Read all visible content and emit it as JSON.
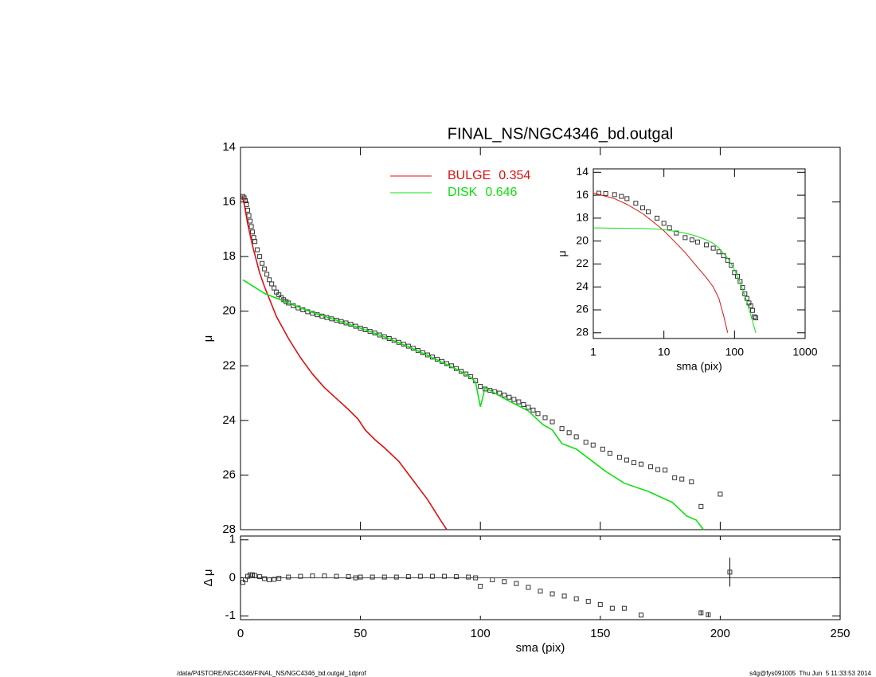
{
  "footer_left": "/data/P4STORE/NGC4346/FINAL_NS/NGC4346_bd.outgal_1dprof",
  "footer_right": "s4g@fys091005  Thu Jun  5 11:33:53 2014",
  "chart_data": [
    {
      "type": "line",
      "title": "FINAL_NS/NGC4346_bd.outgal",
      "ylabel": "μ",
      "xlim": [
        0,
        250
      ],
      "xticks": [
        0,
        50,
        100,
        150,
        200,
        250
      ],
      "ylim": [
        28,
        14
      ],
      "yticks": [
        14,
        16,
        18,
        20,
        22,
        24,
        26,
        28
      ],
      "series": [
        {
          "marker": "square",
          "color": "#333333",
          "x": [
            1,
            1.5,
            2,
            2.5,
            3,
            3.5,
            4,
            4.5,
            5,
            5.5,
            6,
            7,
            8,
            9,
            10,
            11,
            12,
            13,
            14,
            15,
            16,
            17,
            18,
            19,
            20,
            22,
            24,
            26,
            28,
            30,
            32,
            34,
            36,
            38,
            40,
            42,
            44,
            46,
            48,
            50,
            52,
            54,
            56,
            58,
            60,
            62,
            64,
            66,
            68,
            70,
            72,
            74,
            76,
            78,
            80,
            82,
            84,
            86,
            88,
            90,
            92,
            94,
            96,
            98,
            100,
            102,
            104,
            106,
            108,
            110,
            112,
            114,
            116,
            118,
            120,
            122,
            124,
            127,
            130,
            134,
            137,
            140,
            144,
            147,
            151,
            154,
            158,
            161,
            164,
            167,
            171,
            174,
            177,
            181,
            184,
            188,
            192,
            200
          ],
          "values": [
            15.8,
            15.85,
            15.95,
            16.1,
            16.3,
            16.5,
            16.7,
            16.9,
            17.1,
            17.3,
            17.45,
            17.75,
            18.0,
            18.25,
            18.45,
            18.65,
            18.85,
            19.0,
            19.15,
            19.3,
            19.4,
            19.5,
            19.58,
            19.65,
            19.7,
            19.8,
            19.88,
            19.95,
            20.02,
            20.08,
            20.13,
            20.18,
            20.23,
            20.28,
            20.33,
            20.38,
            20.43,
            20.48,
            20.55,
            20.62,
            20.68,
            20.74,
            20.8,
            20.87,
            20.94,
            21.0,
            21.07,
            21.14,
            21.21,
            21.28,
            21.36,
            21.44,
            21.52,
            21.6,
            21.68,
            21.76,
            21.84,
            21.92,
            22.0,
            22.1,
            22.2,
            22.3,
            22.4,
            22.55,
            22.75,
            22.85,
            22.9,
            22.95,
            23.0,
            23.07,
            23.15,
            23.23,
            23.32,
            23.42,
            23.52,
            23.62,
            23.75,
            23.9,
            24.05,
            24.3,
            24.45,
            24.6,
            24.8,
            24.9,
            25.05,
            25.2,
            25.35,
            25.45,
            25.55,
            25.6,
            25.7,
            25.8,
            25.82,
            26.1,
            26.15,
            26.25,
            27.15,
            26.7
          ]
        },
        {
          "name": "BULGE",
          "fraction": 0.354,
          "color": "#e01010",
          "x": [
            1,
            2,
            3,
            5,
            8,
            10,
            15,
            20,
            25,
            30,
            35,
            40,
            45,
            49,
            52,
            56,
            60,
            66,
            72,
            78,
            83,
            86
          ],
          "values": [
            15.8,
            16.3,
            16.8,
            17.6,
            18.6,
            19.1,
            20.2,
            21.0,
            21.7,
            22.3,
            22.8,
            23.2,
            23.6,
            23.95,
            24.35,
            24.7,
            25.0,
            25.5,
            26.2,
            26.9,
            27.6,
            28.0
          ]
        },
        {
          "name": "DISK",
          "fraction": 0.646,
          "color": "#10e010",
          "x": [
            1,
            10,
            20,
            30,
            40,
            50,
            60,
            70,
            80,
            90,
            96,
            98,
            100,
            102,
            110,
            120,
            126,
            130,
            134,
            140,
            146,
            152,
            160,
            170,
            180,
            186,
            190,
            193
          ],
          "values": [
            18.85,
            19.35,
            19.7,
            20.05,
            20.33,
            20.62,
            20.94,
            21.3,
            21.7,
            22.12,
            22.42,
            22.6,
            23.5,
            22.8,
            23.2,
            23.65,
            24.15,
            24.35,
            24.85,
            25.05,
            25.45,
            25.85,
            26.3,
            26.6,
            27.0,
            27.5,
            27.65,
            28.0
          ]
        }
      ]
    },
    {
      "type": "residual",
      "xlabel": "sma (pix)",
      "ylabel": "Δ μ",
      "xlim": [
        0,
        250
      ],
      "xticks": [
        0,
        50,
        100,
        150,
        200,
        250
      ],
      "ylim": [
        -1.1,
        1.1
      ],
      "yticks": [
        1,
        0,
        -1
      ],
      "hline": 0,
      "series": [
        {
          "marker": "square",
          "color": "#333333",
          "x": [
            1,
            2,
            3,
            4,
            5,
            6,
            8,
            10,
            12,
            14,
            16,
            20,
            25,
            30,
            35,
            40,
            45,
            48,
            50,
            55,
            60,
            65,
            70,
            75,
            80,
            85,
            90,
            95,
            98,
            100,
            105,
            110,
            115,
            120,
            125,
            130,
            135,
            140,
            145,
            150,
            155,
            160,
            167,
            192,
            195,
            204
          ],
          "values": [
            -0.12,
            -0.05,
            0.04,
            0.08,
            0.08,
            0.06,
            0.03,
            -0.02,
            -0.05,
            -0.04,
            -0.01,
            0.02,
            0.04,
            0.05,
            0.05,
            0.04,
            0.03,
            0.0,
            0.02,
            0.02,
            0.02,
            0.02,
            0.03,
            0.04,
            0.04,
            0.04,
            0.03,
            0.02,
            0.0,
            -0.22,
            -0.05,
            -0.1,
            -0.15,
            -0.25,
            -0.35,
            -0.42,
            -0.48,
            -0.55,
            -0.62,
            -0.7,
            -0.8,
            -0.8,
            -0.98,
            -0.92,
            -0.97,
            0.15
          ],
          "errors": [
            0,
            0,
            0,
            0,
            0,
            0,
            0,
            0,
            0,
            0,
            0,
            0,
            0,
            0,
            0,
            0,
            0,
            0,
            0,
            0,
            0,
            0,
            0,
            0,
            0,
            0,
            0,
            0,
            0,
            0,
            0,
            0,
            0,
            0,
            0,
            0,
            0,
            0,
            0,
            0,
            0,
            0,
            0,
            0.06,
            0.06,
            0.38
          ]
        }
      ]
    },
    {
      "type": "line",
      "xlabel": "sma (pix)",
      "ylabel": "μ",
      "xlog": true,
      "xlim": [
        1,
        1000
      ],
      "xticks": [
        1,
        10,
        100,
        1000
      ],
      "ylim": [
        28.5,
        13.7
      ],
      "yticks": [
        14,
        16,
        18,
        20,
        22,
        24,
        26,
        28
      ],
      "series": [
        {
          "marker": "square",
          "color": "#333333",
          "x": [
            1.2,
            1.5,
            2,
            2.5,
            3,
            4,
            5,
            6,
            8,
            10,
            12,
            15,
            20,
            25,
            30,
            40,
            50,
            60,
            70,
            80,
            90,
            100,
            110,
            120,
            130,
            140,
            150,
            160,
            170,
            180,
            190,
            200
          ],
          "values": [
            15.82,
            15.85,
            15.95,
            16.1,
            16.3,
            16.7,
            17.1,
            17.45,
            18.0,
            18.45,
            18.85,
            19.3,
            19.7,
            19.9,
            20.08,
            20.33,
            20.62,
            20.94,
            21.28,
            21.68,
            22.1,
            22.75,
            23.07,
            23.52,
            24.05,
            24.6,
            25.0,
            25.4,
            25.65,
            26.05,
            26.6,
            26.7
          ]
        },
        {
          "color": "#e01010",
          "x": [
            1,
            2,
            3,
            5,
            8,
            10,
            15,
            20,
            30,
            40,
            50,
            60,
            70,
            80
          ],
          "values": [
            15.8,
            16.3,
            16.8,
            17.6,
            18.6,
            19.1,
            20.2,
            21.0,
            22.3,
            23.2,
            24.0,
            25.0,
            26.5,
            28.0
          ]
        },
        {
          "color": "#10e010",
          "x": [
            1,
            5,
            10,
            20,
            30,
            40,
            50,
            60,
            80,
            100,
            120,
            150,
            180,
            200
          ],
          "values": [
            18.85,
            18.9,
            19.0,
            19.3,
            19.6,
            19.9,
            20.2,
            20.6,
            21.5,
            22.5,
            23.6,
            25.3,
            27.0,
            28.0
          ]
        }
      ]
    }
  ]
}
